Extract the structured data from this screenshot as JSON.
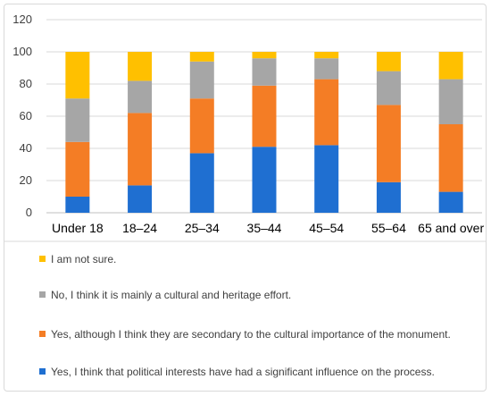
{
  "chart_data": {
    "type": "bar",
    "stacked": true,
    "categories": [
      "Under 18",
      "18–24",
      "25–34",
      "35–44",
      "45–54",
      "55–64",
      "65 and over"
    ],
    "series": [
      {
        "name": "Yes, I think that political interests have had a significant influence on the process.",
        "color": "#1f6fd1",
        "values": [
          10,
          17,
          37,
          41,
          42,
          19,
          13
        ]
      },
      {
        "name": "Yes, although I think they are secondary to the cultural importance of the monument.",
        "color": "#f47d25",
        "values": [
          34,
          45,
          34,
          38,
          41,
          48,
          42
        ]
      },
      {
        "name": "No, I think it is mainly a cultural and heritage effort.",
        "color": "#a6a6a6",
        "values": [
          27,
          20,
          23,
          17,
          13,
          21,
          28
        ]
      },
      {
        "name": "I am not sure.",
        "color": "#ffc000",
        "values": [
          29,
          18,
          6,
          4,
          4,
          12,
          17
        ]
      }
    ],
    "yticks": [
      0,
      20,
      40,
      60,
      80,
      100,
      120
    ],
    "ylim": [
      0,
      120
    ],
    "grid": true,
    "legend_position": "bottom"
  }
}
